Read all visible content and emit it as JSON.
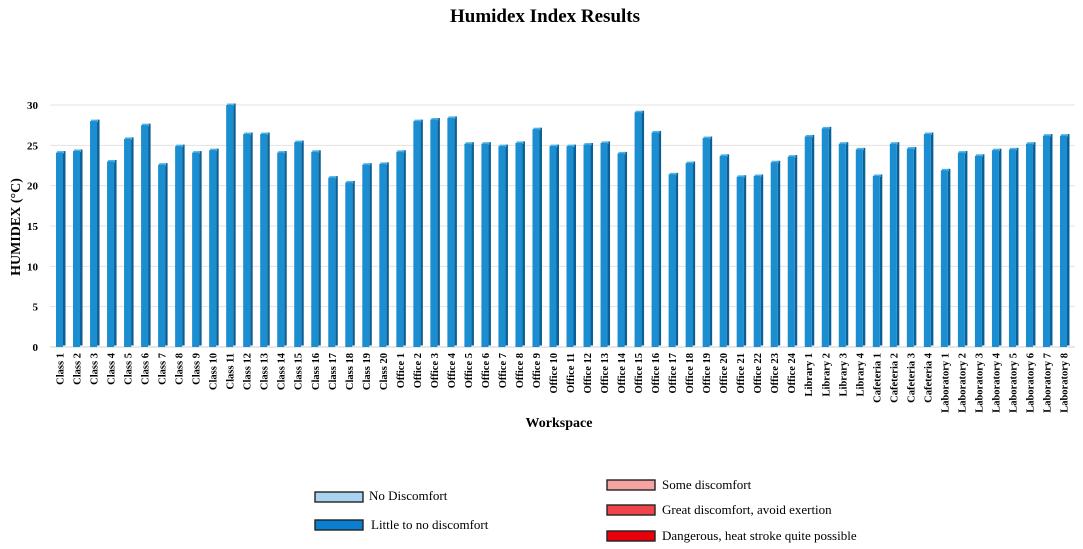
{
  "chart_data": {
    "type": "bar",
    "title": "Humidex Index Results",
    "xlabel": "Workspace",
    "ylabel": "HUMIDEX (°C)",
    "ylim": [
      0,
      30
    ],
    "yticks": [
      "0",
      "5",
      "10",
      "15",
      "20",
      "25",
      "30"
    ],
    "grid": true,
    "legend_position": "bottom",
    "categories": [
      "Class 1",
      "Class 2",
      "Class 3",
      "Class 4",
      "Class 5",
      "Class 6",
      "Class 7",
      "Class 8",
      "Class 9",
      "Class 10",
      "Class 11",
      "Class 12",
      "Class 13",
      "Class 14",
      "Class 15",
      "Class 16",
      "Class 17",
      "Class 18",
      "Class 19",
      "Class 20",
      "Office 1",
      "Office 2",
      "Office 3",
      "Office 4",
      "Office 5",
      "Office 6",
      "Office 7",
      "Office 8",
      "Office 9",
      "Office 10",
      "Office 11",
      "Office 12",
      "Office 13",
      "Office 14",
      "Office 15",
      "Office 16",
      "Office 17",
      "Office 18",
      "Office 19",
      "Office 20",
      "Office 21",
      "Office 22",
      "Office 23",
      "Office 24",
      "Library 1",
      "Library 2",
      "Library 3",
      "Library 4",
      "Cafeteria 1",
      "Cafeteria 2",
      "Cafeteria 3",
      "Cafeteria 4",
      "Laboratory 1",
      "Laboratory 2",
      "Laboratory 3",
      "Laboratory 4",
      "Laboratory 5",
      "Laboratory 6",
      "Laboratory 7",
      "Laboratory 8"
    ],
    "series": [
      {
        "values": [
          24.1,
          24.3,
          28.0,
          23.0,
          25.8,
          27.5,
          22.6,
          24.9,
          24.1,
          24.4,
          30.0,
          26.4,
          26.4,
          24.1,
          25.4,
          24.2,
          21.0,
          20.4,
          22.6,
          22.7,
          24.2,
          28.0,
          28.2,
          28.4,
          25.2,
          25.2,
          24.9,
          25.3,
          27.0,
          24.9,
          24.9,
          25.1,
          25.3,
          24.0,
          29.1,
          26.6,
          21.4,
          22.8,
          25.9,
          23.7,
          21.1,
          21.2,
          22.9,
          23.6,
          26.1,
          27.1,
          25.2,
          24.5,
          21.2,
          25.2,
          24.6,
          26.4,
          21.9,
          24.1,
          23.7,
          24.4,
          24.5,
          25.2,
          26.2,
          26.2
        ],
        "color": "#1a8ed0"
      }
    ],
    "legend": [
      {
        "label": "No Discomfort",
        "color": "#a9d3ee"
      },
      {
        "label": "Little to no discomfort",
        "color": "#0a7fd2"
      },
      {
        "label": "Some discomfort",
        "color": "#f5a3a3"
      },
      {
        "label": "Great discomfort, avoid exertion",
        "color": "#f0434a"
      },
      {
        "label": "Dangerous, heat stroke quite possible",
        "color": "#e8000b"
      }
    ]
  }
}
